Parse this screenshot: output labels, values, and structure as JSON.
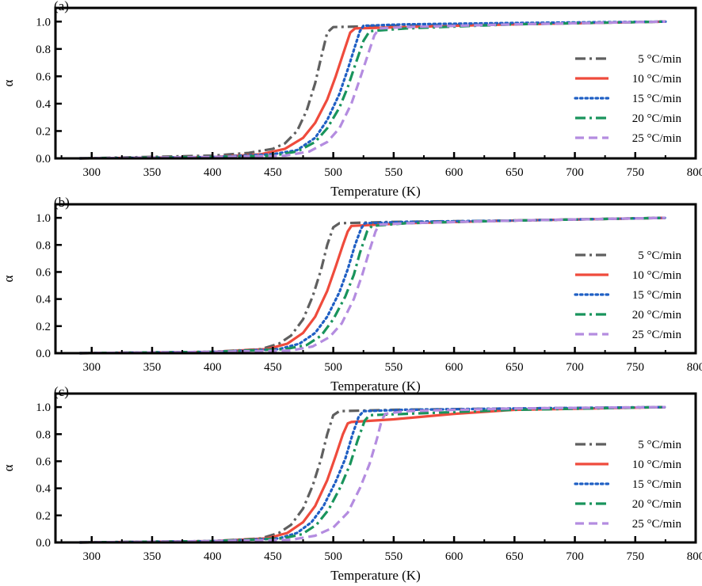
{
  "chart_data": [
    {
      "panel": "(a)",
      "type": "line",
      "xlabel": "Temperature (K)",
      "ylabel": "α",
      "xlim": [
        270,
        800
      ],
      "ylim": [
        0,
        1.1
      ],
      "xticks": [
        300,
        350,
        400,
        450,
        500,
        550,
        600,
        650,
        700,
        750,
        800
      ],
      "yticks": [
        "0.0",
        "0.2",
        "0.4",
        "0.6",
        "0.8",
        "1.0"
      ],
      "grid": false,
      "legend_position": "right",
      "series": [
        {
          "name": "5 °C/min",
          "color": "#5f5f5f",
          "dash": "dash-dot",
          "x": [
            290,
            400,
            430,
            450,
            460,
            470,
            478,
            485,
            490,
            495,
            500,
            550,
            650,
            775
          ],
          "y": [
            0,
            0.02,
            0.04,
            0.07,
            0.11,
            0.2,
            0.35,
            0.55,
            0.74,
            0.92,
            0.96,
            0.97,
            0.98,
            1.0
          ]
        },
        {
          "name": "10 °C/min",
          "color": "#ef4b3c",
          "dash": "solid",
          "x": [
            290,
            400,
            440,
            460,
            475,
            485,
            495,
            502,
            508,
            514,
            518,
            560,
            650,
            775
          ],
          "y": [
            0,
            0.01,
            0.03,
            0.07,
            0.15,
            0.26,
            0.43,
            0.6,
            0.76,
            0.92,
            0.95,
            0.96,
            0.98,
            1.0
          ]
        },
        {
          "name": "15 °C/min",
          "color": "#1f5fc4",
          "dash": "dotted",
          "x": [
            290,
            400,
            450,
            470,
            485,
            495,
            505,
            512,
            518,
            522,
            525,
            560,
            650,
            775
          ],
          "y": [
            0,
            0.01,
            0.03,
            0.06,
            0.15,
            0.28,
            0.47,
            0.65,
            0.82,
            0.93,
            0.97,
            0.98,
            0.99,
            1.0
          ]
        },
        {
          "name": "20 °C/min",
          "color": "#19945c",
          "dash": "dash-dot",
          "x": [
            290,
            400,
            450,
            470,
            485,
            495,
            505,
            512,
            518,
            525,
            530,
            560,
            650,
            775
          ],
          "y": [
            0,
            0.01,
            0.02,
            0.05,
            0.12,
            0.22,
            0.37,
            0.52,
            0.68,
            0.86,
            0.93,
            0.95,
            0.98,
            1.0
          ]
        },
        {
          "name": "25 °C/min",
          "color": "#b48ce0",
          "dash": "dashed",
          "x": [
            290,
            400,
            460,
            480,
            495,
            505,
            515,
            522,
            528,
            534,
            538,
            560,
            650,
            775
          ],
          "y": [
            0,
            0.01,
            0.02,
            0.05,
            0.12,
            0.22,
            0.4,
            0.58,
            0.74,
            0.9,
            0.95,
            0.96,
            0.98,
            1.0
          ]
        }
      ]
    },
    {
      "panel": "(b)",
      "type": "line",
      "xlabel": "Temperature (K)",
      "ylabel": "α",
      "xlim": [
        270,
        800
      ],
      "ylim": [
        0,
        1.1
      ],
      "xticks": [
        300,
        350,
        400,
        450,
        500,
        550,
        600,
        650,
        700,
        750,
        800
      ],
      "yticks": [
        "0.0",
        "0.2",
        "0.4",
        "0.6",
        "0.8",
        "1.0"
      ],
      "grid": false,
      "legend_position": "right",
      "series": [
        {
          "name": "5 °C/min",
          "color": "#5f5f5f",
          "dash": "dash-dot",
          "x": [
            290,
            400,
            440,
            455,
            465,
            475,
            483,
            490,
            495,
            500,
            505,
            550,
            650,
            775
          ],
          "y": [
            0,
            0.01,
            0.03,
            0.07,
            0.13,
            0.25,
            0.42,
            0.62,
            0.8,
            0.93,
            0.96,
            0.97,
            0.98,
            1.0
          ]
        },
        {
          "name": "10 °C/min",
          "color": "#ef4b3c",
          "dash": "solid",
          "x": [
            290,
            400,
            445,
            462,
            475,
            485,
            495,
            502,
            508,
            512,
            515,
            560,
            650,
            775
          ],
          "y": [
            0,
            0.01,
            0.03,
            0.07,
            0.15,
            0.27,
            0.46,
            0.64,
            0.8,
            0.9,
            0.94,
            0.96,
            0.98,
            1.0
          ]
        },
        {
          "name": "15 °C/min",
          "color": "#1f5fc4",
          "dash": "dotted",
          "x": [
            290,
            400,
            455,
            472,
            485,
            495,
            505,
            512,
            518,
            523,
            526,
            560,
            650,
            775
          ],
          "y": [
            0,
            0.01,
            0.03,
            0.07,
            0.15,
            0.27,
            0.45,
            0.62,
            0.8,
            0.92,
            0.96,
            0.97,
            0.98,
            1.0
          ]
        },
        {
          "name": "20 °C/min",
          "color": "#19945c",
          "dash": "dash-dot",
          "x": [
            290,
            400,
            460,
            478,
            490,
            500,
            510,
            517,
            522,
            528,
            532,
            560,
            650,
            775
          ],
          "y": [
            0,
            0.01,
            0.03,
            0.06,
            0.13,
            0.25,
            0.42,
            0.58,
            0.74,
            0.9,
            0.94,
            0.96,
            0.98,
            1.0
          ]
        },
        {
          "name": "25 °C/min",
          "color": "#b48ce0",
          "dash": "dashed",
          "x": [
            290,
            400,
            465,
            483,
            497,
            507,
            517,
            524,
            530,
            535,
            538,
            560,
            650,
            775
          ],
          "y": [
            0,
            0.01,
            0.02,
            0.05,
            0.12,
            0.22,
            0.4,
            0.58,
            0.76,
            0.9,
            0.95,
            0.96,
            0.98,
            1.0
          ]
        }
      ]
    },
    {
      "panel": "(c)",
      "type": "line",
      "xlabel": "Temperature (K)",
      "ylabel": "α",
      "xlim": [
        270,
        800
      ],
      "ylim": [
        0,
        1.1
      ],
      "xticks": [
        300,
        350,
        400,
        450,
        500,
        550,
        600,
        650,
        700,
        750,
        800
      ],
      "yticks": [
        "0.0",
        "0.2",
        "0.4",
        "0.6",
        "0.8",
        "1.0"
      ],
      "grid": false,
      "legend_position": "right",
      "series": [
        {
          "name": "5 °C/min",
          "color": "#5f5f5f",
          "dash": "dash-dot",
          "x": [
            290,
            400,
            440,
            455,
            465,
            475,
            483,
            490,
            495,
            500,
            505,
            550,
            650,
            775
          ],
          "y": [
            0,
            0.01,
            0.03,
            0.07,
            0.13,
            0.25,
            0.42,
            0.62,
            0.8,
            0.94,
            0.97,
            0.98,
            0.99,
            1.0
          ]
        },
        {
          "name": "10 °C/min",
          "color": "#ef4b3c",
          "dash": "solid",
          "x": [
            290,
            400,
            445,
            462,
            475,
            485,
            495,
            502,
            508,
            512,
            515,
            550,
            600,
            650,
            775
          ],
          "y": [
            0,
            0.01,
            0.03,
            0.07,
            0.15,
            0.27,
            0.46,
            0.64,
            0.8,
            0.88,
            0.89,
            0.91,
            0.95,
            0.98,
            1.0
          ]
        },
        {
          "name": "15 °C/min",
          "color": "#1f5fc4",
          "dash": "dotted",
          "x": [
            290,
            400,
            455,
            470,
            482,
            492,
            502,
            510,
            516,
            521,
            525,
            560,
            650,
            775
          ],
          "y": [
            0,
            0.01,
            0.03,
            0.07,
            0.15,
            0.27,
            0.45,
            0.62,
            0.8,
            0.93,
            0.97,
            0.98,
            0.99,
            1.0
          ]
        },
        {
          "name": "20 °C/min",
          "color": "#19945c",
          "dash": "dash-dot",
          "x": [
            290,
            400,
            458,
            474,
            486,
            496,
            506,
            514,
            520,
            526,
            530,
            560,
            650,
            775
          ],
          "y": [
            0,
            0.01,
            0.03,
            0.06,
            0.13,
            0.24,
            0.41,
            0.58,
            0.75,
            0.9,
            0.94,
            0.95,
            0.98,
            1.0
          ]
        },
        {
          "name": "25 °C/min",
          "color": "#b48ce0",
          "dash": "dashed",
          "x": [
            290,
            400,
            465,
            485,
            500,
            512,
            522,
            530,
            536,
            540,
            543,
            560,
            650,
            775
          ],
          "y": [
            0,
            0.01,
            0.02,
            0.05,
            0.11,
            0.22,
            0.4,
            0.58,
            0.76,
            0.9,
            0.95,
            0.97,
            0.99,
            1.0
          ]
        }
      ]
    }
  ]
}
